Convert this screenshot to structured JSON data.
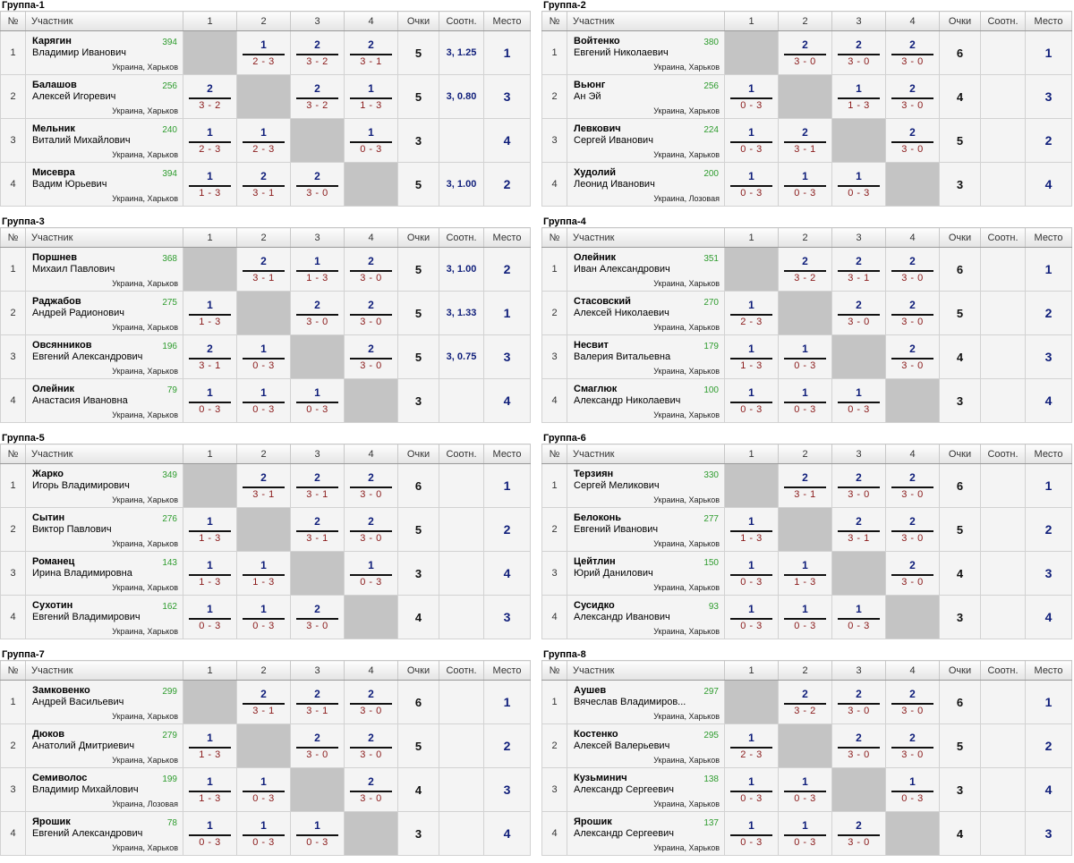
{
  "headers": {
    "num": "№",
    "player": "Участник",
    "c1": "1",
    "c2": "2",
    "c3": "3",
    "c4": "4",
    "score": "Очки",
    "ratio": "Соотн.",
    "place": "Место"
  },
  "groups": [
    {
      "title": "Группа-1",
      "players": [
        {
          "num": "1",
          "surname": "Карягин",
          "name": "Владимир Иванович",
          "rating": "394",
          "city": "Украина, Харьков",
          "results": [
            null,
            {
              "p": "1",
              "s": "2 - 3"
            },
            {
              "p": "2",
              "s": "3 - 2"
            },
            {
              "p": "2",
              "s": "3 - 1"
            }
          ],
          "score": "5",
          "ratio": "3, 1.25",
          "place": "1"
        },
        {
          "num": "2",
          "surname": "Балашов",
          "name": "Алексей Игоревич",
          "rating": "256",
          "city": "Украина, Харьков",
          "results": [
            {
              "p": "2",
              "s": "3 - 2"
            },
            null,
            {
              "p": "2",
              "s": "3 - 2"
            },
            {
              "p": "1",
              "s": "1 - 3"
            }
          ],
          "score": "5",
          "ratio": "3, 0.80",
          "place": "3"
        },
        {
          "num": "3",
          "surname": "Мельник",
          "name": "Виталий Михайлович",
          "rating": "240",
          "city": "Украина, Харьков",
          "results": [
            {
              "p": "1",
              "s": "2 - 3"
            },
            {
              "p": "1",
              "s": "2 - 3"
            },
            null,
            {
              "p": "1",
              "s": "0 - 3"
            }
          ],
          "score": "3",
          "ratio": "",
          "place": "4"
        },
        {
          "num": "4",
          "surname": "Мисевра",
          "name": "Вадим Юрьевич",
          "rating": "394",
          "city": "Украина, Харьков",
          "results": [
            {
              "p": "1",
              "s": "1 - 3"
            },
            {
              "p": "2",
              "s": "3 - 1"
            },
            {
              "p": "2",
              "s": "3 - 0"
            },
            null
          ],
          "score": "5",
          "ratio": "3, 1.00",
          "place": "2"
        }
      ]
    },
    {
      "title": "Группа-2",
      "players": [
        {
          "num": "1",
          "surname": "Войтенко",
          "name": "Евгений Николаевич",
          "rating": "380",
          "city": "Украина, Харьков",
          "results": [
            null,
            {
              "p": "2",
              "s": "3 - 0"
            },
            {
              "p": "2",
              "s": "3 - 0"
            },
            {
              "p": "2",
              "s": "3 - 0"
            }
          ],
          "score": "6",
          "ratio": "",
          "place": "1"
        },
        {
          "num": "2",
          "surname": "Вьюнг",
          "name": "Ан Эй",
          "rating": "256",
          "city": "Украина, Харьков",
          "results": [
            {
              "p": "1",
              "s": "0 - 3"
            },
            null,
            {
              "p": "1",
              "s": "1 - 3"
            },
            {
              "p": "2",
              "s": "3 - 0"
            }
          ],
          "score": "4",
          "ratio": "",
          "place": "3"
        },
        {
          "num": "3",
          "surname": "Левкович",
          "name": "Сергей Иванович",
          "rating": "224",
          "city": "Украина, Харьков",
          "results": [
            {
              "p": "1",
              "s": "0 - 3"
            },
            {
              "p": "2",
              "s": "3 - 1"
            },
            null,
            {
              "p": "2",
              "s": "3 - 0"
            }
          ],
          "score": "5",
          "ratio": "",
          "place": "2"
        },
        {
          "num": "4",
          "surname": "Худолий",
          "name": "Леонид Иванович",
          "rating": "200",
          "city": "Украина, Лозовая",
          "results": [
            {
              "p": "1",
              "s": "0 - 3"
            },
            {
              "p": "1",
              "s": "0 - 3"
            },
            {
              "p": "1",
              "s": "0 - 3"
            },
            null
          ],
          "score": "3",
          "ratio": "",
          "place": "4"
        }
      ]
    },
    {
      "title": "Группа-3",
      "players": [
        {
          "num": "1",
          "surname": "Поршнев",
          "name": "Михаил Павлович",
          "rating": "368",
          "city": "Украина, Харьков",
          "results": [
            null,
            {
              "p": "2",
              "s": "3 - 1"
            },
            {
              "p": "1",
              "s": "1 - 3"
            },
            {
              "p": "2",
              "s": "3 - 0"
            }
          ],
          "score": "5",
          "ratio": "3, 1.00",
          "place": "2"
        },
        {
          "num": "2",
          "surname": "Раджабов",
          "name": "Андрей Радионович",
          "rating": "275",
          "city": "Украина, Харьков",
          "results": [
            {
              "p": "1",
              "s": "1 - 3"
            },
            null,
            {
              "p": "2",
              "s": "3 - 0"
            },
            {
              "p": "2",
              "s": "3 - 0"
            }
          ],
          "score": "5",
          "ratio": "3, 1.33",
          "place": "1"
        },
        {
          "num": "3",
          "surname": "Овсянников",
          "name": "Евгений Александрович",
          "rating": "196",
          "city": "Украина, Харьков",
          "results": [
            {
              "p": "2",
              "s": "3 - 1"
            },
            {
              "p": "1",
              "s": "0 - 3"
            },
            null,
            {
              "p": "2",
              "s": "3 - 0"
            }
          ],
          "score": "5",
          "ratio": "3, 0.75",
          "place": "3"
        },
        {
          "num": "4",
          "surname": "Олейник",
          "name": "Анастасия Ивановна",
          "rating": "79",
          "city": "Украина, Харьков",
          "results": [
            {
              "p": "1",
              "s": "0 - 3"
            },
            {
              "p": "1",
              "s": "0 - 3"
            },
            {
              "p": "1",
              "s": "0 - 3"
            },
            null
          ],
          "score": "3",
          "ratio": "",
          "place": "4"
        }
      ]
    },
    {
      "title": "Группа-4",
      "players": [
        {
          "num": "1",
          "surname": "Олейник",
          "name": "Иван Александрович",
          "rating": "351",
          "city": "Украина, Харьков",
          "results": [
            null,
            {
              "p": "2",
              "s": "3 - 2"
            },
            {
              "p": "2",
              "s": "3 - 1"
            },
            {
              "p": "2",
              "s": "3 - 0"
            }
          ],
          "score": "6",
          "ratio": "",
          "place": "1"
        },
        {
          "num": "2",
          "surname": "Стасовский",
          "name": "Алексей Николаевич",
          "rating": "270",
          "city": "Украина, Харьков",
          "results": [
            {
              "p": "1",
              "s": "2 - 3"
            },
            null,
            {
              "p": "2",
              "s": "3 - 0"
            },
            {
              "p": "2",
              "s": "3 - 0"
            }
          ],
          "score": "5",
          "ratio": "",
          "place": "2"
        },
        {
          "num": "3",
          "surname": "Несвит",
          "name": "Валерия Витальевна",
          "rating": "179",
          "city": "Украина, Харьков",
          "results": [
            {
              "p": "1",
              "s": "1 - 3"
            },
            {
              "p": "1",
              "s": "0 - 3"
            },
            null,
            {
              "p": "2",
              "s": "3 - 0"
            }
          ],
          "score": "4",
          "ratio": "",
          "place": "3"
        },
        {
          "num": "4",
          "surname": "Смаглюк",
          "name": "Александр Николаевич",
          "rating": "100",
          "city": "Украина, Харьков",
          "results": [
            {
              "p": "1",
              "s": "0 - 3"
            },
            {
              "p": "1",
              "s": "0 - 3"
            },
            {
              "p": "1",
              "s": "0 - 3"
            },
            null
          ],
          "score": "3",
          "ratio": "",
          "place": "4"
        }
      ]
    },
    {
      "title": "Группа-5",
      "players": [
        {
          "num": "1",
          "surname": "Жарко",
          "name": "Игорь Владимирович",
          "rating": "349",
          "city": "Украина, Харьков",
          "results": [
            null,
            {
              "p": "2",
              "s": "3 - 1"
            },
            {
              "p": "2",
              "s": "3 - 1"
            },
            {
              "p": "2",
              "s": "3 - 0"
            }
          ],
          "score": "6",
          "ratio": "",
          "place": "1"
        },
        {
          "num": "2",
          "surname": "Сытин",
          "name": "Виктор Павлович",
          "rating": "276",
          "city": "Украина, Харьков",
          "results": [
            {
              "p": "1",
              "s": "1 - 3"
            },
            null,
            {
              "p": "2",
              "s": "3 - 1"
            },
            {
              "p": "2",
              "s": "3 - 0"
            }
          ],
          "score": "5",
          "ratio": "",
          "place": "2"
        },
        {
          "num": "3",
          "surname": "Романец",
          "name": "Ирина Владимировна",
          "rating": "143",
          "city": "Украина, Харьков",
          "results": [
            {
              "p": "1",
              "s": "1 - 3"
            },
            {
              "p": "1",
              "s": "1 - 3"
            },
            null,
            {
              "p": "1",
              "s": "0 - 3"
            }
          ],
          "score": "3",
          "ratio": "",
          "place": "4"
        },
        {
          "num": "4",
          "surname": "Сухотин",
          "name": "Евгений Владимирович",
          "rating": "162",
          "city": "Украина, Харьков",
          "results": [
            {
              "p": "1",
              "s": "0 - 3"
            },
            {
              "p": "1",
              "s": "0 - 3"
            },
            {
              "p": "2",
              "s": "3 - 0"
            },
            null
          ],
          "score": "4",
          "ratio": "",
          "place": "3"
        }
      ]
    },
    {
      "title": "Группа-6",
      "players": [
        {
          "num": "1",
          "surname": "Терзиян",
          "name": "Сергей Меликович",
          "rating": "330",
          "city": "Украина, Харьков",
          "results": [
            null,
            {
              "p": "2",
              "s": "3 - 1"
            },
            {
              "p": "2",
              "s": "3 - 0"
            },
            {
              "p": "2",
              "s": "3 - 0"
            }
          ],
          "score": "6",
          "ratio": "",
          "place": "1"
        },
        {
          "num": "2",
          "surname": "Белоконь",
          "name": "Евгений Иванович",
          "rating": "277",
          "city": "Украина, Харьков",
          "results": [
            {
              "p": "1",
              "s": "1 - 3"
            },
            null,
            {
              "p": "2",
              "s": "3 - 1"
            },
            {
              "p": "2",
              "s": "3 - 0"
            }
          ],
          "score": "5",
          "ratio": "",
          "place": "2"
        },
        {
          "num": "3",
          "surname": "Цейтлин",
          "name": "Юрий Данилович",
          "rating": "150",
          "city": "Украина, Харьков",
          "results": [
            {
              "p": "1",
              "s": "0 - 3"
            },
            {
              "p": "1",
              "s": "1 - 3"
            },
            null,
            {
              "p": "2",
              "s": "3 - 0"
            }
          ],
          "score": "4",
          "ratio": "",
          "place": "3"
        },
        {
          "num": "4",
          "surname": "Сусидко",
          "name": "Александр Иванович",
          "rating": "93",
          "city": "Украина, Харьков",
          "results": [
            {
              "p": "1",
              "s": "0 - 3"
            },
            {
              "p": "1",
              "s": "0 - 3"
            },
            {
              "p": "1",
              "s": "0 - 3"
            },
            null
          ],
          "score": "3",
          "ratio": "",
          "place": "4"
        }
      ]
    },
    {
      "title": "Группа-7",
      "players": [
        {
          "num": "1",
          "surname": "Замковенко",
          "name": "Андрей Васильевич",
          "rating": "299",
          "city": "Украина, Харьков",
          "results": [
            null,
            {
              "p": "2",
              "s": "3 - 1"
            },
            {
              "p": "2",
              "s": "3 - 1"
            },
            {
              "p": "2",
              "s": "3 - 0"
            }
          ],
          "score": "6",
          "ratio": "",
          "place": "1"
        },
        {
          "num": "2",
          "surname": "Дюков",
          "name": "Анатолий Дмитриевич",
          "rating": "279",
          "city": "Украина, Харьков",
          "results": [
            {
              "p": "1",
              "s": "1 - 3"
            },
            null,
            {
              "p": "2",
              "s": "3 - 0"
            },
            {
              "p": "2",
              "s": "3 - 0"
            }
          ],
          "score": "5",
          "ratio": "",
          "place": "2"
        },
        {
          "num": "3",
          "surname": "Семиволос",
          "name": "Владимир Михайлович",
          "rating": "199",
          "city": "Украина, Лозовая",
          "results": [
            {
              "p": "1",
              "s": "1 - 3"
            },
            {
              "p": "1",
              "s": "0 - 3"
            },
            null,
            {
              "p": "2",
              "s": "3 - 0"
            }
          ],
          "score": "4",
          "ratio": "",
          "place": "3"
        },
        {
          "num": "4",
          "surname": "Ярошик",
          "name": "Евгений Александрович",
          "rating": "78",
          "city": "Украина, Харьков",
          "results": [
            {
              "p": "1",
              "s": "0 - 3"
            },
            {
              "p": "1",
              "s": "0 - 3"
            },
            {
              "p": "1",
              "s": "0 - 3"
            },
            null
          ],
          "score": "3",
          "ratio": "",
          "place": "4"
        }
      ]
    },
    {
      "title": "Группа-8",
      "players": [
        {
          "num": "1",
          "surname": "Аушев",
          "name": "Вячеслав Владимиров...",
          "rating": "297",
          "city": "Украина, Харьков",
          "results": [
            null,
            {
              "p": "2",
              "s": "3 - 2"
            },
            {
              "p": "2",
              "s": "3 - 0"
            },
            {
              "p": "2",
              "s": "3 - 0"
            }
          ],
          "score": "6",
          "ratio": "",
          "place": "1"
        },
        {
          "num": "2",
          "surname": "Костенко",
          "name": "Алексей Валерьевич",
          "rating": "295",
          "city": "Украина, Харьков",
          "results": [
            {
              "p": "1",
              "s": "2 - 3"
            },
            null,
            {
              "p": "2",
              "s": "3 - 0"
            },
            {
              "p": "2",
              "s": "3 - 0"
            }
          ],
          "score": "5",
          "ratio": "",
          "place": "2"
        },
        {
          "num": "3",
          "surname": "Кузьминич",
          "name": "Александр Сергеевич",
          "rating": "138",
          "city": "Украина, Харьков",
          "results": [
            {
              "p": "1",
              "s": "0 - 3"
            },
            {
              "p": "1",
              "s": "0 - 3"
            },
            null,
            {
              "p": "1",
              "s": "0 - 3"
            }
          ],
          "score": "3",
          "ratio": "",
          "place": "4"
        },
        {
          "num": "4",
          "surname": "Ярошик",
          "name": "Александр Сергеевич",
          "rating": "137",
          "city": "Украина, Харьков",
          "results": [
            {
              "p": "1",
              "s": "0 - 3"
            },
            {
              "p": "1",
              "s": "0 - 3"
            },
            {
              "p": "2",
              "s": "3 - 0"
            },
            null
          ],
          "score": "4",
          "ratio": "",
          "place": "3"
        }
      ]
    }
  ]
}
